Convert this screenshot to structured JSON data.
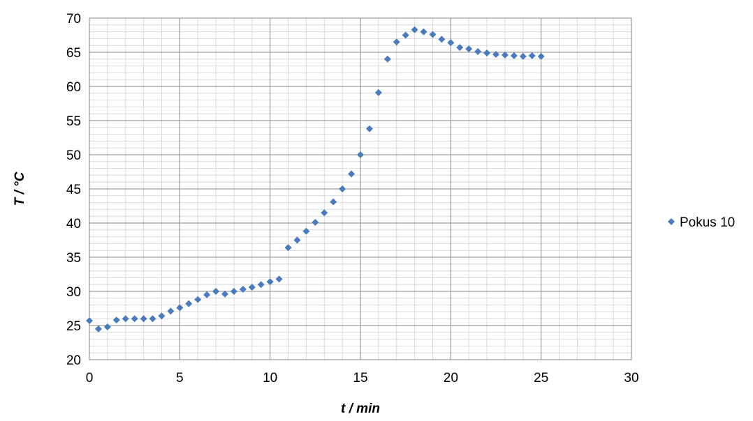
{
  "chart_data": {
    "type": "scatter",
    "xlabel": "t / min",
    "ylabel": "T / °C",
    "xlim": [
      0,
      30
    ],
    "ylim": [
      20,
      70
    ],
    "x_major_step": 5,
    "y_major_step": 5,
    "x_minor_step": 1,
    "y_minor_step": 1,
    "grid": true,
    "legend_position": "right",
    "marker_color": "#4a7bbf",
    "series": [
      {
        "name": "Pokus 10",
        "x": [
          0,
          0.5,
          1,
          1.5,
          2,
          2.5,
          3,
          3.5,
          4,
          4.5,
          5,
          5.5,
          6,
          6.5,
          7,
          7.5,
          8,
          8.5,
          9,
          9.5,
          10,
          10.5,
          11,
          11.5,
          12,
          12.5,
          13,
          13.5,
          14,
          14.5,
          15,
          15.5,
          16,
          16.5,
          17,
          17.5,
          18,
          18.5,
          19,
          19.5,
          20,
          20.5,
          21,
          21.5,
          22,
          22.5,
          23,
          23.5,
          24,
          24.5,
          25
        ],
        "y": [
          25.7,
          24.5,
          24.8,
          25.8,
          26.0,
          26.0,
          26.0,
          26.0,
          26.4,
          27.1,
          27.6,
          28.2,
          28.8,
          29.5,
          30.0,
          29.6,
          30.0,
          30.3,
          30.6,
          31.0,
          31.4,
          31.8,
          36.4,
          37.5,
          38.8,
          40.1,
          41.5,
          43.1,
          45.0,
          47.2,
          50.0,
          53.8,
          59.1,
          64.0,
          66.5,
          67.5,
          68.3,
          68.0,
          67.6,
          66.9,
          66.4,
          65.7,
          65.5,
          65.1,
          64.9,
          64.7,
          64.6,
          64.5,
          64.4,
          64.5,
          64.4
        ]
      }
    ]
  }
}
